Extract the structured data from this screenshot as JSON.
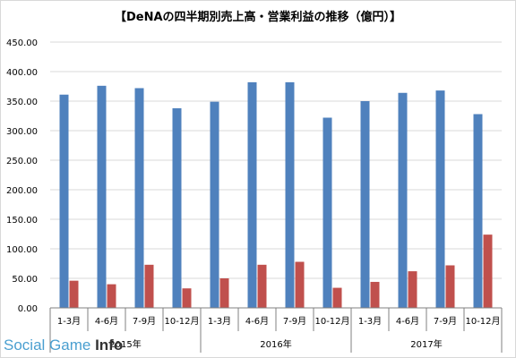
{
  "chart_data": {
    "type": "bar",
    "title": "【DeNAの四半期別売上高・営業利益の推移（億円）】",
    "categories": [
      "1-3月",
      "4-6月",
      "7-9月",
      "10-12月",
      "1-3月",
      "4-6月",
      "7-9月",
      "10-12月",
      "1-3月",
      "4-6月",
      "7-9月",
      "10-12月"
    ],
    "groups": [
      {
        "label": "2015年",
        "span": 4
      },
      {
        "label": "2016年",
        "span": 4
      },
      {
        "label": "2017年",
        "span": 4
      }
    ],
    "series": [
      {
        "values": [
          361,
          376,
          372,
          338,
          349,
          382,
          382,
          322,
          350,
          364,
          368,
          328
        ]
      },
      {
        "values": [
          46,
          40,
          73,
          33,
          50,
          73,
          78,
          34,
          44,
          62,
          72,
          124
        ]
      }
    ],
    "ylim": [
      0,
      450
    ],
    "yticks": [
      "0.00",
      "50.00",
      "100.00",
      "150.00",
      "200.00",
      "250.00",
      "300.00",
      "350.00",
      "400.00",
      "450.00"
    ],
    "grid": true,
    "colors": {
      "sales": "#4f81bd",
      "profit": "#c0504d",
      "grid": "#d9d9d9",
      "axis": "#808080"
    }
  },
  "watermark": {
    "part1": "Social ",
    "part2": "Game ",
    "part3": "Info"
  }
}
